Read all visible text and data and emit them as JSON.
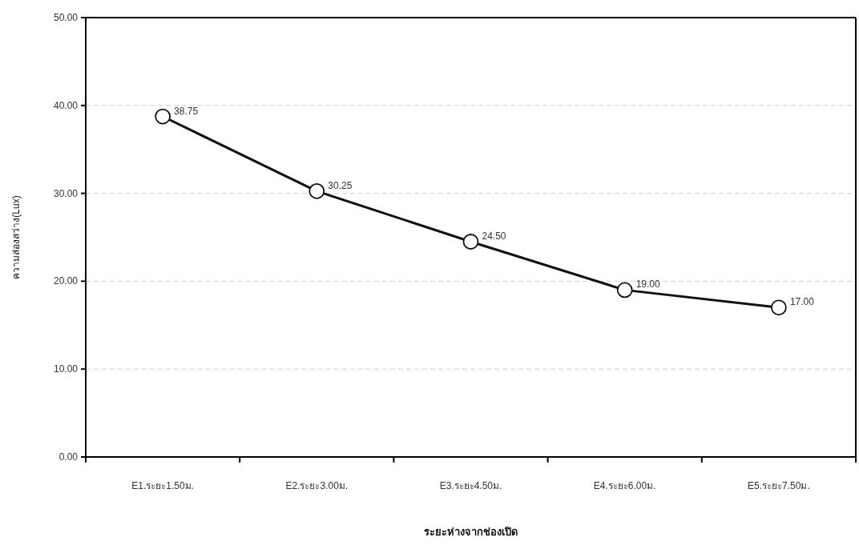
{
  "chart_data": {
    "type": "line",
    "xlabel": "ระยะห่างจากช่องเปิด",
    "ylabel": "ความส่องสว่าง(Lux)",
    "categories": [
      "E1.ระยะ1.50ม.",
      "E2.ระยะ3.00ม.",
      "E3.ระยะ4.50ม.",
      "E4.ระยะ6.00ม.",
      "E5.ระยะ7.50ม."
    ],
    "series": [
      {
        "color": "#111111",
        "values": [
          38.75,
          30.25,
          24.5,
          19,
          17
        ],
        "value_labels": [
          "38.75",
          "30.25",
          "24.50",
          "19.00",
          "17.00"
        ]
      }
    ],
    "ylim": [
      0,
      50
    ],
    "yticks": [
      {
        "value": 0,
        "label": "0.00"
      },
      {
        "value": 10,
        "label": "10.00"
      },
      {
        "value": 20,
        "label": "20.00"
      },
      {
        "value": 30,
        "label": "30.00"
      },
      {
        "value": 40,
        "label": "40.00"
      },
      {
        "value": 50,
        "label": "50.00"
      }
    ],
    "grid": "y",
    "marker": "circle",
    "line_style": "solid"
  }
}
